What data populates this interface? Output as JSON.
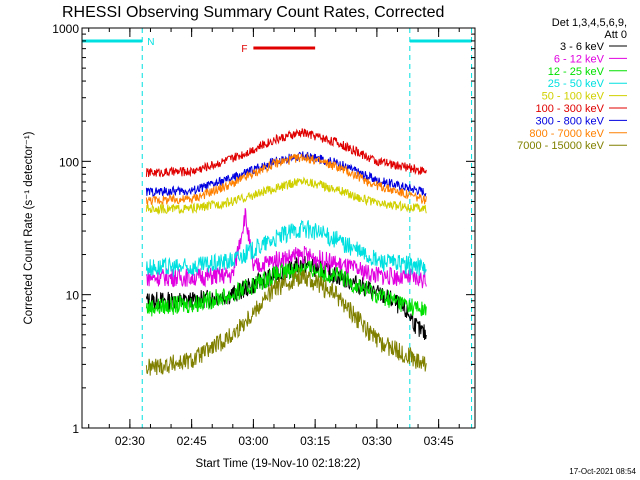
{
  "chart_data": {
    "type": "line",
    "title": "RHESSI Observing Summary Count Rates, Corrected",
    "xlabel": "Start Time (19-Nov-10 02:18:22)",
    "ylabel": "Corrected Count Rate (s⁻¹ detector⁻¹)",
    "yscale": "log",
    "ylim": [
      1,
      1000
    ],
    "xlim": [
      "02:18:22",
      "03:53:50"
    ],
    "x_tick_labels": [
      "02:30",
      "02:45",
      "03:00",
      "03:15",
      "03:30",
      "03:45"
    ],
    "y_tick_labels": [
      "1",
      "10",
      "100",
      "1000"
    ],
    "detector_info": [
      "Det 1,3,4,5,6,9,",
      "Att 0"
    ],
    "footer_date": "17-Oct-2021 08:54",
    "series": [
      {
        "name": "3 - 6 keV",
        "color": "#000000",
        "x": [
          "02:34",
          "02:45",
          "02:55",
          "03:05",
          "03:12",
          "03:20",
          "03:28",
          "03:34",
          "03:38",
          "03:40",
          "03:42"
        ],
        "y": [
          9,
          9,
          10,
          14,
          17,
          14,
          11,
          9,
          7,
          5.5,
          5
        ]
      },
      {
        "name": "6 - 12 keV",
        "color": "#e000e0",
        "x": [
          "02:34",
          "02:45",
          "02:55",
          "02:58",
          "03:00",
          "03:05",
          "03:12",
          "03:20",
          "03:30",
          "03:42"
        ],
        "y": [
          13.5,
          13.5,
          14,
          40,
          16,
          18,
          20,
          17,
          14,
          13
        ]
      },
      {
        "name": "12 - 25 keV",
        "color": "#00e000",
        "x": [
          "02:34",
          "02:45",
          "02:55",
          "03:05",
          "03:12",
          "03:20",
          "03:30",
          "03:42"
        ],
        "y": [
          8,
          8.5,
          10,
          14,
          16,
          14,
          10,
          7.5
        ]
      },
      {
        "name": "25 - 50 keV",
        "color": "#00e0e0",
        "x": [
          "02:34",
          "02:45",
          "02:55",
          "03:05",
          "03:12",
          "03:20",
          "03:30",
          "03:42"
        ],
        "y": [
          16,
          16,
          18,
          26,
          32,
          26,
          18,
          16
        ]
      },
      {
        "name": "50 - 100 keV",
        "color": "#d0d000",
        "x": [
          "02:34",
          "02:45",
          "02:55",
          "03:05",
          "03:12",
          "03:20",
          "03:30",
          "03:42"
        ],
        "y": [
          44,
          44,
          50,
          62,
          72,
          62,
          48,
          44
        ]
      },
      {
        "name": "100 - 300 keV",
        "color": "#e00000",
        "x": [
          "02:34",
          "02:45",
          "02:55",
          "03:05",
          "03:12",
          "03:20",
          "03:30",
          "03:42"
        ],
        "y": [
          82,
          84,
          105,
          145,
          165,
          140,
          100,
          84
        ]
      },
      {
        "name": "300 - 800 keV",
        "color": "#0000e0",
        "x": [
          "02:34",
          "02:45",
          "02:55",
          "03:05",
          "03:12",
          "03:20",
          "03:30",
          "03:42"
        ],
        "y": [
          59,
          60,
          75,
          100,
          110,
          98,
          72,
          59
        ]
      },
      {
        "name": "800 - 7000 keV",
        "color": "#ff8000",
        "x": [
          "02:34",
          "02:45",
          "02:55",
          "03:05",
          "03:12",
          "03:20",
          "03:30",
          "03:42"
        ],
        "y": [
          51,
          52,
          68,
          96,
          108,
          92,
          66,
          51
        ]
      },
      {
        "name": "7000 - 15000 keV",
        "color": "#808000",
        "x": [
          "02:34",
          "02:45",
          "02:55",
          "03:05",
          "03:12",
          "03:20",
          "03:30",
          "03:42"
        ],
        "y": [
          2.8,
          3.2,
          5,
          11,
          14,
          10,
          4.5,
          3
        ]
      }
    ],
    "flags": {
      "night_label": "N",
      "night_color": "#00e0e0",
      "night_intervals": [
        [
          "02:18:22",
          "02:33"
        ],
        [
          "03:38",
          "03:53"
        ]
      ],
      "flare_label": "F",
      "flare_color": "#e00000",
      "flare_interval": [
        "03:00",
        "03:15"
      ]
    }
  }
}
